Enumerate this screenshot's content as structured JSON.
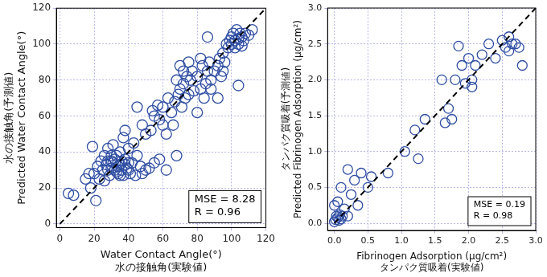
{
  "chart_data": [
    {
      "type": "scatter",
      "x_label": [
        "Water Contact Angle(°)",
        "水の接触角(実験値)"
      ],
      "y_label": [
        "水の接触角(予測値)",
        "Predicted Water Contact Angle(°)"
      ],
      "x": [
        5,
        8,
        15,
        17,
        18,
        19,
        20,
        21,
        22,
        23,
        24,
        25,
        26,
        27,
        28,
        28,
        29,
        30,
        30,
        31,
        32,
        32,
        33,
        33,
        34,
        34,
        35,
        35,
        36,
        36,
        37,
        37,
        38,
        38,
        39,
        40,
        40,
        41,
        42,
        43,
        44,
        45,
        47,
        48,
        50,
        52,
        55,
        58,
        62,
        48,
        45,
        50,
        53,
        54,
        55,
        57,
        58,
        60,
        60,
        62,
        63,
        65,
        66,
        67,
        68,
        68,
        69,
        70,
        70,
        71,
        72,
        72,
        73,
        74,
        75,
        75,
        76,
        77,
        78,
        80,
        80,
        82,
        82,
        83,
        84,
        85,
        86,
        87,
        88,
        88,
        90,
        92,
        93,
        94,
        95,
        96,
        97,
        98,
        99,
        100,
        100,
        101,
        102,
        102,
        103,
        104,
        104,
        105,
        106,
        106,
        107,
        108,
        110,
        112,
        104,
        86,
        92,
        95,
        40,
        31,
        30,
        35,
        28,
        26,
        38
      ],
      "y": [
        17,
        16,
        25,
        28,
        20,
        43,
        28,
        13,
        32,
        25,
        35,
        30,
        38,
        33,
        30,
        42,
        27,
        35,
        31,
        34,
        30,
        36,
        29,
        38,
        32,
        28,
        33,
        40,
        30,
        35,
        27,
        48,
        33,
        36,
        31,
        30,
        42,
        28,
        34,
        45,
        27,
        38,
        32,
        28,
        30,
        31,
        34,
        36,
        30,
        55,
        65,
        50,
        52,
        63,
        60,
        66,
        58,
        55,
        65,
        50,
        70,
        62,
        55,
        68,
        80,
        38,
        72,
        75,
        88,
        65,
        78,
        85,
        70,
        82,
        72,
        90,
        80,
        85,
        74,
        82,
        62,
        75,
        92,
        88,
        70,
        78,
        85,
        90,
        80,
        75,
        85,
        88,
        92,
        82,
        95,
        90,
        100,
        98,
        102,
        104,
        100,
        106,
        98,
        102,
        108,
        103,
        100,
        106,
        104,
        99,
        102,
        106,
        105,
        108,
        77,
        104,
        70,
        85,
        34,
        44,
        38,
        27,
        35,
        24,
        52
      ],
      "color": "#2f4ea3",
      "marker": "open circle",
      "xlim": [
        -2,
        120
      ],
      "ylim": [
        -2,
        120
      ],
      "xticks": [
        0,
        20,
        40,
        60,
        80,
        100,
        120
      ],
      "yticks": [
        0,
        20,
        40,
        60,
        80,
        100,
        120
      ],
      "grid": true,
      "reference_line": {
        "x": [
          0,
          120
        ],
        "y": [
          0,
          120
        ],
        "color": "#000000",
        "line_style": "dashed"
      },
      "annotations": [
        "MSE = 8.28",
        "R = 0.96"
      ]
    },
    {
      "type": "scatter",
      "x_label": [
        "Fibrinogen Adsorption (μg/cm²)",
        "タンパク質吸着(実験値)"
      ],
      "y_label": [
        "タンパク質吸着(予測値)",
        "Predicted Fibrinogen Adsorption (μg/cm²)"
      ],
      "x": [
        0.0,
        0.02,
        0.03,
        0.05,
        0.07,
        0.08,
        0.1,
        0.12,
        0.05,
        0.0,
        0.1,
        0.15,
        0.2,
        0.25,
        0.3,
        0.2,
        0.35,
        0.4,
        0.5,
        0.55,
        0.8,
        1.05,
        1.2,
        1.25,
        1.35,
        1.6,
        1.65,
        1.7,
        1.75,
        1.8,
        1.85,
        1.9,
        1.95,
        2.0,
        2.05,
        2.1,
        2.2,
        2.3,
        2.4,
        2.5,
        2.55,
        2.6,
        2.65,
        2.7,
        2.75,
        2.8,
        2.6,
        2.05
      ],
      "y": [
        0.02,
        0.05,
        0.1,
        0.08,
        0.04,
        0.12,
        0.06,
        0.1,
        0.3,
        0.25,
        0.5,
        0.2,
        0.1,
        0.4,
        0.6,
        0.75,
        0.25,
        0.7,
        0.5,
        0.65,
        0.7,
        1.0,
        1.3,
        0.9,
        1.45,
        2.0,
        1.4,
        1.6,
        1.45,
        2.0,
        2.47,
        2.2,
        1.95,
        2.3,
        2.0,
        2.2,
        2.35,
        2.5,
        2.3,
        2.55,
        2.45,
        2.6,
        2.5,
        2.5,
        2.45,
        2.2,
        2.4,
        1.9
      ],
      "color": "#2f4ea3",
      "marker": "open circle",
      "xlim": [
        -0.1,
        3.0
      ],
      "ylim": [
        -0.1,
        3.0
      ],
      "xticks": [
        {
          "value": 0,
          "label": "0.0"
        },
        0.5,
        {
          "value": 1,
          "label": "1.0"
        },
        1.5,
        {
          "value": 2,
          "label": "2.0"
        },
        2.5,
        {
          "value": 3,
          "label": "3.0"
        }
      ],
      "yticks": [
        {
          "value": 0,
          "label": "0.0"
        },
        0.5,
        {
          "value": 1,
          "label": "1.0"
        },
        1.5,
        {
          "value": 2,
          "label": "2.0"
        },
        2.5,
        {
          "value": 3,
          "label": "3.0"
        }
      ],
      "grid": true,
      "reference_line": {
        "x": [
          0,
          3
        ],
        "y": [
          0,
          3
        ],
        "color": "#000000",
        "line_style": "dashed"
      },
      "annotations": [
        "MSE = 0.19",
        "R = 0.98"
      ]
    }
  ]
}
